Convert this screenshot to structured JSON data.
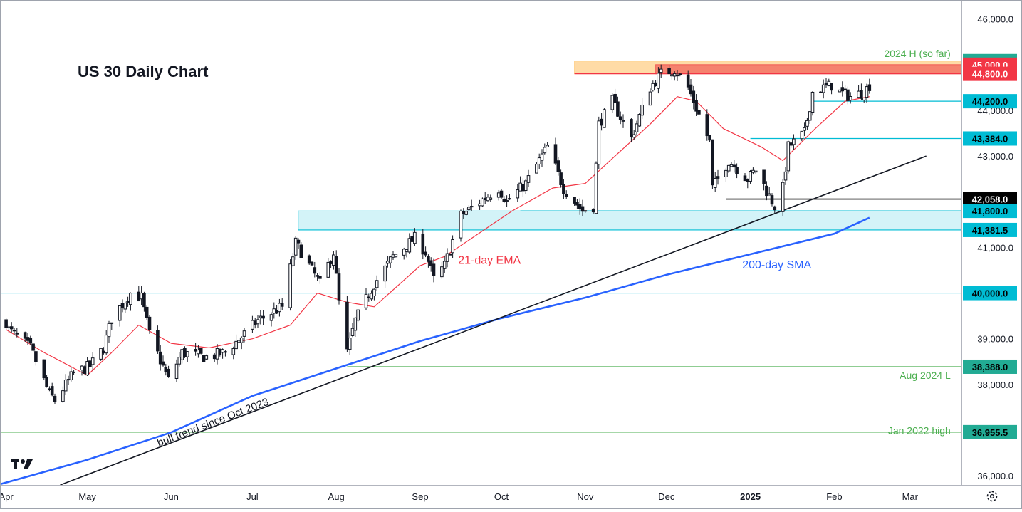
{
  "chart_data": {
    "type": "candlestick",
    "title": "US 30 Daily Chart",
    "y_axis": {
      "ticks": [
        36000,
        37000,
        38000,
        39000,
        40000,
        41000,
        42000,
        43000,
        44000,
        45000,
        46000
      ],
      "tick_labels": [
        "36,000.0",
        "37,000.0",
        "38,000.0",
        "39,000.0",
        "40,000.0",
        "41,000.0",
        "42,000.0",
        "43,000.0",
        "44,000.0",
        "45,000.0",
        "46,000.0"
      ],
      "ylim": [
        35800,
        46400
      ]
    },
    "x_axis": {
      "labels": [
        {
          "text": "Apr",
          "date": "2024-04-01",
          "bold": false
        },
        {
          "text": "May",
          "date": "2024-05-01",
          "bold": false
        },
        {
          "text": "Jun",
          "date": "2024-06-01",
          "bold": false
        },
        {
          "text": "Jul",
          "date": "2024-07-01",
          "bold": false
        },
        {
          "text": "Aug",
          "date": "2024-08-01",
          "bold": false
        },
        {
          "text": "Sep",
          "date": "2024-09-01",
          "bold": false
        },
        {
          "text": "Oct",
          "date": "2024-10-01",
          "bold": false
        },
        {
          "text": "Nov",
          "date": "2024-11-01",
          "bold": false
        },
        {
          "text": "Dec",
          "date": "2024-12-01",
          "bold": false
        },
        {
          "text": "2025",
          "date": "2025-01-01",
          "bold": true
        },
        {
          "text": "Feb",
          "date": "2025-02-01",
          "bold": false
        },
        {
          "text": "Mar",
          "date": "2025-03-01",
          "bold": false
        }
      ],
      "xlim": [
        "2024-03-30",
        "2025-03-20"
      ]
    },
    "price_path": [
      [
        "2024-03-30",
        39700
      ],
      [
        "2024-04-02",
        39200
      ],
      [
        "2024-04-10",
        38800
      ],
      [
        "2024-04-17",
        37800
      ],
      [
        "2024-04-19",
        37650
      ],
      [
        "2024-04-26",
        38250
      ],
      [
        "2024-05-02",
        38400
      ],
      [
        "2024-05-07",
        38800
      ],
      [
        "2024-05-10",
        39450
      ],
      [
        "2024-05-17",
        40000
      ],
      [
        "2024-05-21",
        39900
      ],
      [
        "2024-05-24",
        39100
      ],
      [
        "2024-05-31",
        38100
      ],
      [
        "2024-06-05",
        38700
      ],
      [
        "2024-06-14",
        38600
      ],
      [
        "2024-06-21",
        38700
      ],
      [
        "2024-06-28",
        39100
      ],
      [
        "2024-07-03",
        39400
      ],
      [
        "2024-07-12",
        39700
      ],
      [
        "2024-07-17",
        41100
      ],
      [
        "2024-07-19",
        40900
      ],
      [
        "2024-07-26",
        40200
      ],
      [
        "2024-07-31",
        40900
      ],
      [
        "2024-08-02",
        39800
      ],
      [
        "2024-08-05",
        38700
      ],
      [
        "2024-08-08",
        39400
      ],
      [
        "2024-08-15",
        40200
      ],
      [
        "2024-08-22",
        40800
      ],
      [
        "2024-08-30",
        41200
      ],
      [
        "2024-09-03",
        40900
      ],
      [
        "2024-09-06",
        40300
      ],
      [
        "2024-09-10",
        40600
      ],
      [
        "2024-09-16",
        41700
      ],
      [
        "2024-09-30",
        42300
      ],
      [
        "2024-10-03",
        42000
      ],
      [
        "2024-10-10",
        42400
      ],
      [
        "2024-10-18",
        43200
      ],
      [
        "2024-10-24",
        42300
      ],
      [
        "2024-10-31",
        41800
      ],
      [
        "2024-11-04",
        41900
      ],
      [
        "2024-11-06",
        43700
      ],
      [
        "2024-11-11",
        44200
      ],
      [
        "2024-11-18",
        43400
      ],
      [
        "2024-11-25",
        44500
      ],
      [
        "2024-11-29",
        44800
      ],
      [
        "2024-12-04",
        44900
      ],
      [
        "2024-12-09",
        44500
      ],
      [
        "2024-12-13",
        43900
      ],
      [
        "2024-12-17",
        43300
      ],
      [
        "2024-12-18",
        42300
      ],
      [
        "2024-12-24",
        42900
      ],
      [
        "2024-12-31",
        42500
      ],
      [
        "2025-01-03",
        42700
      ],
      [
        "2025-01-10",
        41900
      ],
      [
        "2025-01-13",
        42300
      ],
      [
        "2025-01-15",
        43200
      ],
      [
        "2025-01-21",
        43500
      ],
      [
        "2025-01-24",
        44400
      ],
      [
        "2025-01-31",
        44550
      ],
      [
        "2025-02-03",
        44400
      ],
      [
        "2025-02-07",
        44300
      ],
      [
        "2025-02-12",
        44400
      ],
      [
        "2025-02-14",
        44550
      ]
    ],
    "series": [
      {
        "name": "21-day EMA",
        "color": "#f23645",
        "values": [
          [
            "2024-04-01",
            39200
          ],
          [
            "2024-04-15",
            38700
          ],
          [
            "2024-05-01",
            38200
          ],
          [
            "2024-05-10",
            38700
          ],
          [
            "2024-05-20",
            39300
          ],
          [
            "2024-06-01",
            38900
          ],
          [
            "2024-06-15",
            38800
          ],
          [
            "2024-07-01",
            39000
          ],
          [
            "2024-07-15",
            39300
          ],
          [
            "2024-07-25",
            40000
          ],
          [
            "2024-08-05",
            39800
          ],
          [
            "2024-08-15",
            39700
          ],
          [
            "2024-09-01",
            40600
          ],
          [
            "2024-09-10",
            40800
          ],
          [
            "2024-09-20",
            41200
          ],
          [
            "2024-10-05",
            41800
          ],
          [
            "2024-10-20",
            42300
          ],
          [
            "2024-11-01",
            42400
          ],
          [
            "2024-11-12",
            43000
          ],
          [
            "2024-11-25",
            43700
          ],
          [
            "2024-12-05",
            44300
          ],
          [
            "2024-12-12",
            44200
          ],
          [
            "2024-12-22",
            43600
          ],
          [
            "2025-01-05",
            43200
          ],
          [
            "2025-01-13",
            42900
          ],
          [
            "2025-01-25",
            43600
          ],
          [
            "2025-02-05",
            44200
          ],
          [
            "2025-02-14",
            44300
          ]
        ]
      },
      {
        "name": "200-day SMA",
        "color": "#2962ff",
        "values": [
          [
            "2024-03-30",
            35820
          ],
          [
            "2024-05-01",
            36350
          ],
          [
            "2024-06-01",
            36950
          ],
          [
            "2024-07-01",
            37750
          ],
          [
            "2024-08-01",
            38350
          ],
          [
            "2024-09-01",
            38950
          ],
          [
            "2024-10-01",
            39450
          ],
          [
            "2024-11-01",
            39900
          ],
          [
            "2024-12-01",
            40400
          ],
          [
            "2025-01-01",
            40850
          ],
          [
            "2025-02-01",
            41300
          ],
          [
            "2025-02-14",
            41650
          ]
        ]
      }
    ],
    "trendline": {
      "label": "bull trend since Oct 2023",
      "from": [
        "2024-04-21",
        35800
      ],
      "to": [
        "2025-03-07",
        43000
      ]
    },
    "zones": [
      {
        "name": "resistance-zone-orange",
        "color": "#ffcc80",
        "opacity": 0.7,
        "from": "2024-10-28",
        "to": "2025-03-20",
        "y1": 44800,
        "y2": 45078.5
      },
      {
        "name": "resistance-zone-red",
        "color": "#ef5350",
        "opacity": 0.65,
        "from": "2024-11-27",
        "to": "2025-03-20",
        "y1": 44800,
        "y2": 45000
      },
      {
        "name": "support-zone-cyan",
        "color": "#80deea",
        "opacity": 0.35,
        "from": "2024-07-18",
        "to": "2025-03-20",
        "y1": 41381.5,
        "y2": 41800
      }
    ],
    "levels": [
      {
        "value": 45078.5,
        "label": "45,078.5",
        "bg": "#22ab94",
        "fg": "#ffffff",
        "line_color": "#4caf50",
        "from": "2024-11-27",
        "line": false
      },
      {
        "value": 45000,
        "label": "45,000.0",
        "bg": "#f23645",
        "fg": "#ffffff",
        "line_color": "#f23645",
        "from": "2024-11-27",
        "line": false
      },
      {
        "value": 44800,
        "label": "44,800.0",
        "bg": "#f23645",
        "fg": "#ffffff",
        "line_color": "#f23645",
        "from": "2024-10-28",
        "line": true
      },
      {
        "value": 44200,
        "label": "44,200.0",
        "bg": "#00bcd4",
        "fg": "#000000",
        "line_color": "#00bcd4",
        "from": "2025-01-24",
        "line": true
      },
      {
        "value": 43384,
        "label": "43,384.0",
        "bg": "#00bcd4",
        "fg": "#000000",
        "line_color": "#00bcd4",
        "from": "2025-01-01",
        "line": true
      },
      {
        "value": 42058,
        "label": "42,058.0",
        "bg": "#000000",
        "fg": "#ffffff",
        "line_color": "#000000",
        "from": "2024-12-23",
        "line": true
      },
      {
        "value": 41800,
        "label": "41,800.0",
        "bg": "#00bcd4",
        "fg": "#000000",
        "line_color": "#00bcd4",
        "from": "2024-10-08",
        "line": true
      },
      {
        "value": 41381.5,
        "label": "41,381.5",
        "bg": "#00bcd4",
        "fg": "#000000",
        "line_color": "#00bcd4",
        "from": "2024-07-18",
        "line": true
      },
      {
        "value": 40000,
        "label": "40,000.0",
        "bg": "#00bcd4",
        "fg": "#000000",
        "line_color": "#00bcd4",
        "from": "2024-03-30",
        "line": true
      },
      {
        "value": 38388,
        "label": "38,388.0",
        "bg": "#22ab94",
        "fg": "#000000",
        "line_color": "#4caf50",
        "from": "2024-08-05",
        "line": true
      },
      {
        "value": 36955.5,
        "label": "36,955.5",
        "bg": "#22ab94",
        "fg": "#000000",
        "line_color": "#4caf50",
        "from": "2024-03-30",
        "line": true
      }
    ],
    "annotations": [
      {
        "text": "2024 H (so far)",
        "color": "#4caf50",
        "anchor": "end",
        "date": "2025-03-16",
        "y": 45250
      },
      {
        "text": "Aug 2024 L",
        "color": "#4caf50",
        "anchor": "end",
        "date": "2025-03-16",
        "y": 38200
      },
      {
        "text": "Jan 2022 high",
        "color": "#4caf50",
        "anchor": "end",
        "date": "2025-03-16",
        "y": 36990
      },
      {
        "text": "21-day EMA",
        "color": "#f23645",
        "anchor": "start",
        "date": "2024-09-15",
        "y": 40720
      },
      {
        "text": "200-day SMA",
        "color": "#2962ff",
        "anchor": "start",
        "date": "2024-12-29",
        "y": 40620
      }
    ],
    "logo": "TV"
  }
}
